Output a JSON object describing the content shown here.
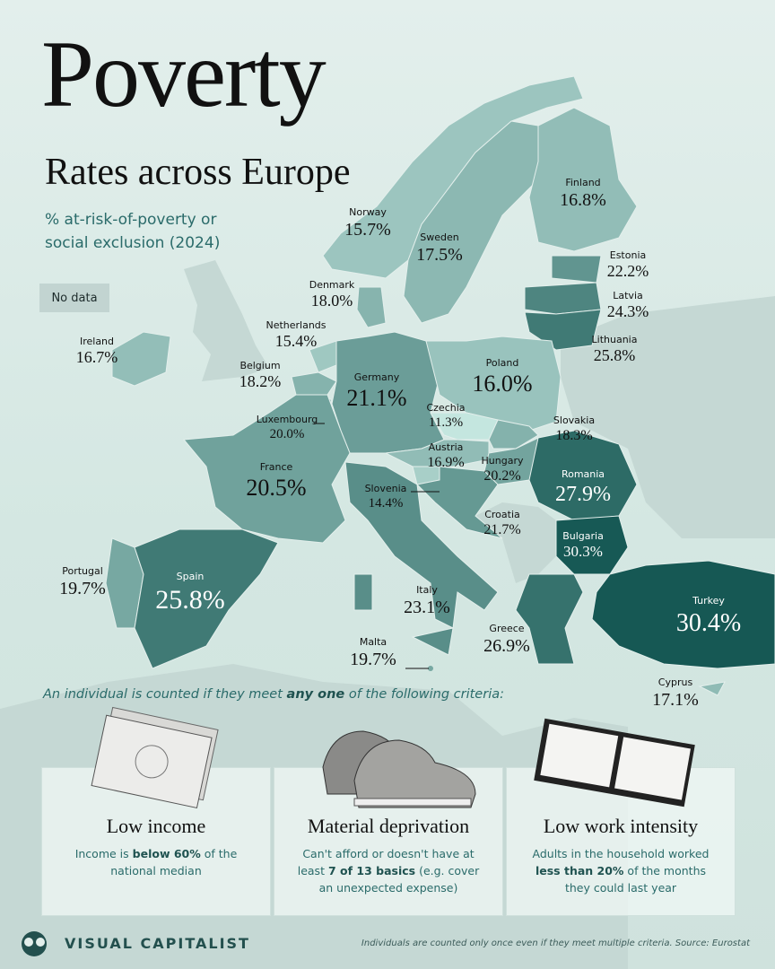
{
  "header": {
    "title": "Poverty",
    "subtitle": "Rates across Europe",
    "description": [
      "% at-risk-of-poverty or",
      "social exclusion (2024)"
    ]
  },
  "legend": {
    "no_data": "No data"
  },
  "countries": [
    {
      "name": "Norway",
      "value": 15.7,
      "value_label": "15.7%"
    },
    {
      "name": "Sweden",
      "value": 17.5,
      "value_label": "17.5%"
    },
    {
      "name": "Finland",
      "value": 16.8,
      "value_label": "16.8%"
    },
    {
      "name": "Estonia",
      "value": 22.2,
      "value_label": "22.2%"
    },
    {
      "name": "Latvia",
      "value": 24.3,
      "value_label": "24.3%"
    },
    {
      "name": "Lithuania",
      "value": 25.8,
      "value_label": "25.8%"
    },
    {
      "name": "Denmark",
      "value": 18.0,
      "value_label": "18.0%"
    },
    {
      "name": "Netherlands",
      "value": 15.4,
      "value_label": "15.4%"
    },
    {
      "name": "Ireland",
      "value": 16.7,
      "value_label": "16.7%"
    },
    {
      "name": "Belgium",
      "value": 18.2,
      "value_label": "18.2%"
    },
    {
      "name": "Germany",
      "value": 21.1,
      "value_label": "21.1%"
    },
    {
      "name": "Poland",
      "value": 16.0,
      "value_label": "16.0%"
    },
    {
      "name": "Czechia",
      "value": 11.3,
      "value_label": "11.3%"
    },
    {
      "name": "Slovakia",
      "value": 18.3,
      "value_label": "18.3%"
    },
    {
      "name": "Luxembourg",
      "value": 20.0,
      "value_label": "20.0%"
    },
    {
      "name": "Austria",
      "value": 16.9,
      "value_label": "16.9%"
    },
    {
      "name": "Hungary",
      "value": 20.2,
      "value_label": "20.2%"
    },
    {
      "name": "France",
      "value": 20.5,
      "value_label": "20.5%"
    },
    {
      "name": "Romania",
      "value": 27.9,
      "value_label": "27.9%"
    },
    {
      "name": "Slovenia",
      "value": 14.4,
      "value_label": "14.4%"
    },
    {
      "name": "Croatia",
      "value": 21.7,
      "value_label": "21.7%"
    },
    {
      "name": "Bulgaria",
      "value": 30.3,
      "value_label": "30.3%"
    },
    {
      "name": "Portugal",
      "value": 19.7,
      "value_label": "19.7%"
    },
    {
      "name": "Spain",
      "value": 25.8,
      "value_label": "25.8%"
    },
    {
      "name": "Italy",
      "value": 23.1,
      "value_label": "23.1%"
    },
    {
      "name": "Turkey",
      "value": 30.4,
      "value_label": "30.4%"
    },
    {
      "name": "Greece",
      "value": 26.9,
      "value_label": "26.9%"
    },
    {
      "name": "Malta",
      "value": 19.7,
      "value_label": "19.7%"
    },
    {
      "name": "Cyprus",
      "value": 17.1,
      "value_label": "17.1%"
    }
  ],
  "criteria": {
    "intro": [
      "An individual is counted if they meet ",
      "any one",
      " of the following criteria:"
    ],
    "cards": [
      {
        "title": "Low income",
        "text": [
          "Income is ",
          "below 60%",
          " of the national median"
        ]
      },
      {
        "title": "Material deprivation",
        "text": [
          "Can't afford or doesn't have at least ",
          "7 of 13 basics",
          " (e.g. cover an unexpected expense)"
        ]
      },
      {
        "title": "Low work intensity",
        "text": [
          "Adults in the household worked ",
          "less than 20%",
          " of the months they could last year"
        ]
      }
    ]
  },
  "footer": {
    "brand": "VISUAL CAPITALIST",
    "note": "Individuals are counted only once even if they meet multiple criteria. Source: Eurostat"
  }
}
